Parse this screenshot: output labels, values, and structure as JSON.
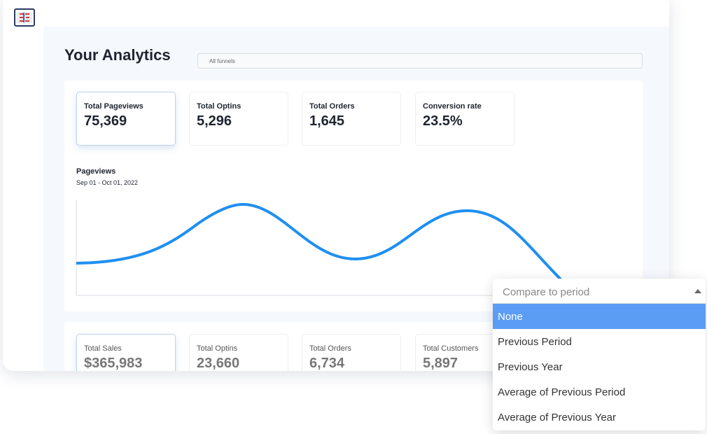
{
  "header": {
    "title": "Your Analytics",
    "filter": "All funnels"
  },
  "stats": [
    {
      "label": "Total Pageviews",
      "value": "75,369"
    },
    {
      "label": "Total Optins",
      "value": "5,296"
    },
    {
      "label": "Total Orders",
      "value": "1,645"
    },
    {
      "label": "Conversion rate",
      "value": "23.5%"
    }
  ],
  "chart": {
    "title": "Pageviews",
    "range": "Sep 01 - Oct 01, 2022"
  },
  "bottom_stats": [
    {
      "label": "Total Sales",
      "value": "$365,983"
    },
    {
      "label": "Total Optins",
      "value": "23,660"
    },
    {
      "label": "Total Orders",
      "value": "6,734"
    },
    {
      "label": "Total Customers",
      "value": "5,897"
    }
  ],
  "dropdown": {
    "placeholder": "Compare to period",
    "options": [
      "None",
      "Previous Period",
      "Previous Year",
      "Average of Previous Period",
      "Average of Previous Year"
    ]
  }
}
